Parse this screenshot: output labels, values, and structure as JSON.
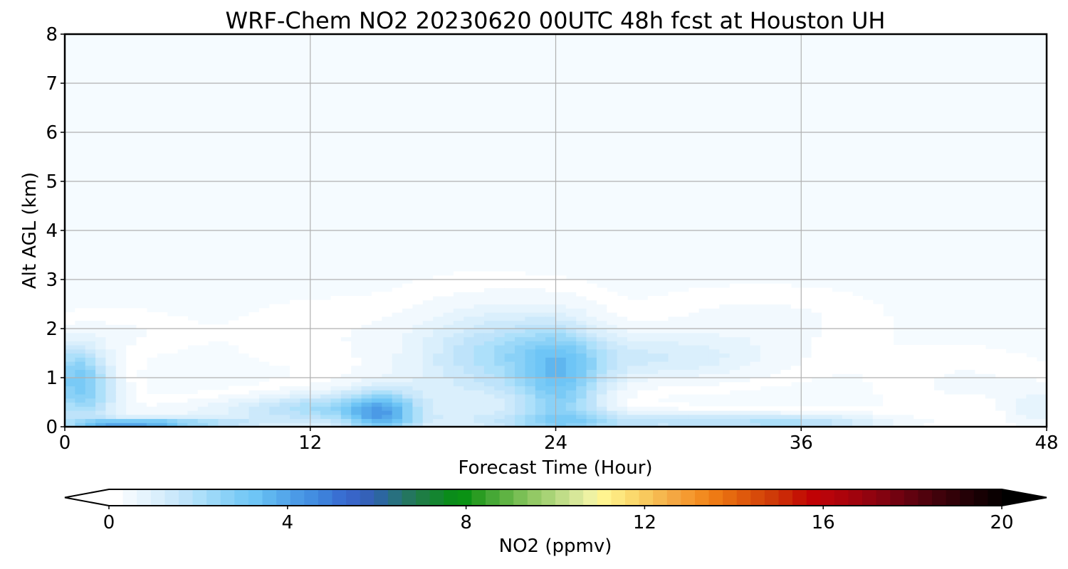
{
  "chart_data": {
    "type": "heatmap",
    "title": "WRF-Chem NO2  20230620 00UTC 48h fcst at Houston UH",
    "xlabel": "Forecast Time (Hour)",
    "ylabel": "Alt AGL (km)",
    "xlim": [
      0,
      48
    ],
    "ylim": [
      0,
      8
    ],
    "xticks": [
      "0",
      "12",
      "24",
      "36",
      "48"
    ],
    "yticks": [
      "0",
      "1",
      "2",
      "3",
      "4",
      "5",
      "6",
      "7",
      "8"
    ],
    "grid": true,
    "background_color": "#f5fbff",
    "colorbar": {
      "label": "NO2  (ppmv)",
      "range": [
        0,
        20
      ],
      "ticks": [
        "0",
        "4",
        "8",
        "12",
        "16",
        "20"
      ],
      "extend": "both",
      "colors": [
        "#ffffff",
        "#f2f9fe",
        "#e6f4fd",
        "#daeffc",
        "#cce9fb",
        "#bee3fa",
        "#ade0fa",
        "#9bd8f8",
        "#8ad1f7",
        "#79caf6",
        "#6ec5f6",
        "#5fb6ef",
        "#55a8eb",
        "#4b9ae6",
        "#438ee1",
        "#3d80da",
        "#396fd2",
        "#3865c8",
        "#3461b8",
        "#2c66a0",
        "#28707f",
        "#24765f",
        "#1e7d44",
        "#148530",
        "#0a8c1a",
        "#0a9214",
        "#2a9c22",
        "#46a836",
        "#5fb343",
        "#7abf55",
        "#93c965",
        "#a8d376",
        "#c0dd88",
        "#d7e799",
        "#eef2a3",
        "#fff490",
        "#fde77f",
        "#fbd96d",
        "#f8c95d",
        "#f6b84f",
        "#f4a742",
        "#f59a30",
        "#f28b20",
        "#ee7a14",
        "#e66a0f",
        "#df590c",
        "#d74a0a",
        "#cf3b08",
        "#cb2806",
        "#c41304",
        "#c00205",
        "#b8040a",
        "#ad030b",
        "#a0030d",
        "#92030f",
        "#830310",
        "#720210",
        "#61020f",
        "#50020d",
        "#40020b",
        "#320108",
        "#240106",
        "#170003",
        "#0a0001"
      ]
    },
    "field": {
      "description": "NO2 concentration field (ppmv) as blob features [hour, altitude_km, hour_sigma, alt_sigma, value]",
      "blobs": [
        [
          0.8,
          0.7,
          1.2,
          0.45,
          2.6
        ],
        [
          0.5,
          1.3,
          1.0,
          0.35,
          1.4
        ],
        [
          2.5,
          1.9,
          2.5,
          0.35,
          0.35
        ],
        [
          3.0,
          0.05,
          2.0,
          0.08,
          2.8
        ],
        [
          6.0,
          0.08,
          3.0,
          0.08,
          1.8
        ],
        [
          10.0,
          0.35,
          4.0,
          0.18,
          0.9
        ],
        [
          12.0,
          1.9,
          3.0,
          0.55,
          0.25
        ],
        [
          15.5,
          0.25,
          1.2,
          0.35,
          2.9
        ],
        [
          13.0,
          0.4,
          2.5,
          0.25,
          1.4
        ],
        [
          20.0,
          1.2,
          3.0,
          0.9,
          1.1
        ],
        [
          24.3,
          0.85,
          1.5,
          0.8,
          2.4
        ],
        [
          22.0,
          1.6,
          2.5,
          0.55,
          1.0
        ],
        [
          29.0,
          1.4,
          4.0,
          0.35,
          1.2
        ],
        [
          34.0,
          2.2,
          4.0,
          0.45,
          0.4
        ],
        [
          28.0,
          0.1,
          6.0,
          0.15,
          1.6
        ],
        [
          36.0,
          0.08,
          3.0,
          0.12,
          1.3
        ],
        [
          44.0,
          0.9,
          3.0,
          0.5,
          0.35
        ],
        [
          47.5,
          0.35,
          1.0,
          0.35,
          0.7
        ]
      ]
    }
  }
}
